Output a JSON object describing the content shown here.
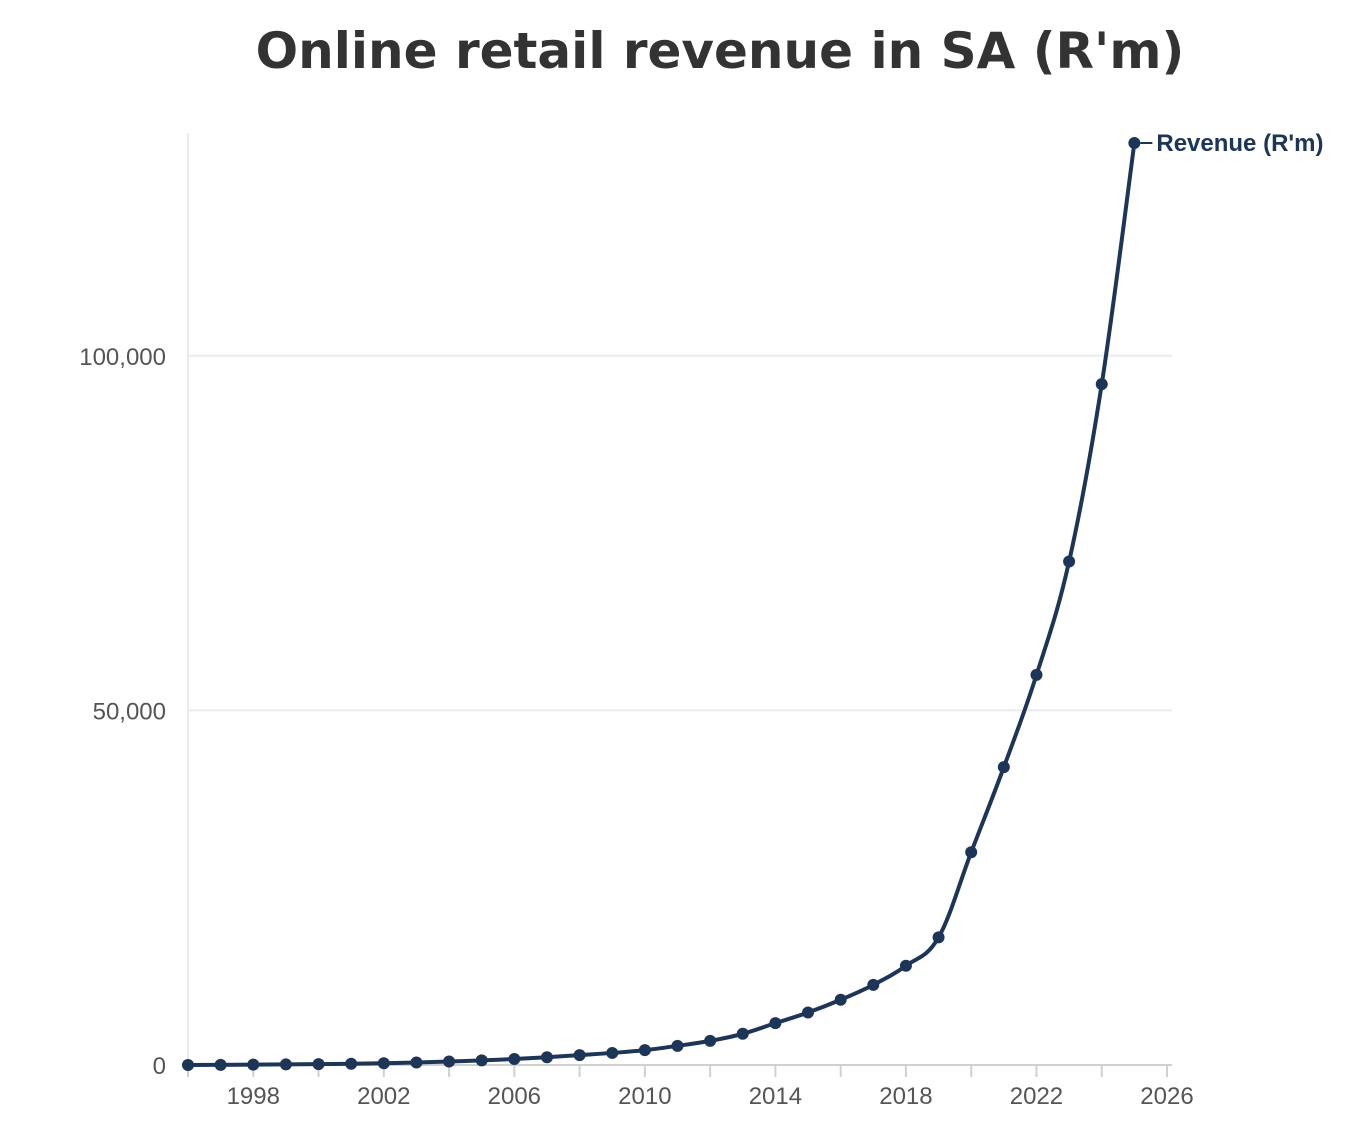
{
  "chart_data": {
    "type": "line",
    "title": "Online retail revenue in SA (R'm)",
    "xlabel": "",
    "ylabel": "",
    "xlim": [
      1996,
      2026
    ],
    "ylim": [
      0,
      130000
    ],
    "x_ticks": [
      1998,
      2002,
      2006,
      2010,
      2014,
      2018,
      2022,
      2026
    ],
    "x_tick_labels": [
      "1998",
      "2002",
      "2006",
      "2010",
      "2014",
      "2018",
      "2022",
      "2026"
    ],
    "y_ticks": [
      0,
      50000,
      100000
    ],
    "y_tick_labels": [
      "0",
      "50,000",
      "100,000"
    ],
    "grid": "horizontal",
    "color": "#1d3557",
    "x": [
      1996,
      1997,
      1998,
      1999,
      2000,
      2001,
      2002,
      2003,
      2004,
      2005,
      2006,
      2007,
      2008,
      2009,
      2010,
      2011,
      2012,
      2013,
      2014,
      2015,
      2016,
      2017,
      2018,
      2019,
      2020,
      2021,
      2022,
      2023,
      2024,
      2025
    ],
    "series": [
      {
        "name": "Revenue (R'm)",
        "values": [
          0,
          20,
          50,
          80,
          120,
          180,
          250,
          350,
          500,
          650,
          850,
          1100,
          1400,
          1700,
          2100,
          2700,
          3400,
          4400,
          5900,
          7400,
          9200,
          11300,
          14000,
          18000,
          30000,
          42000,
          55000,
          71000,
          96000,
          130000
        ]
      }
    ]
  }
}
